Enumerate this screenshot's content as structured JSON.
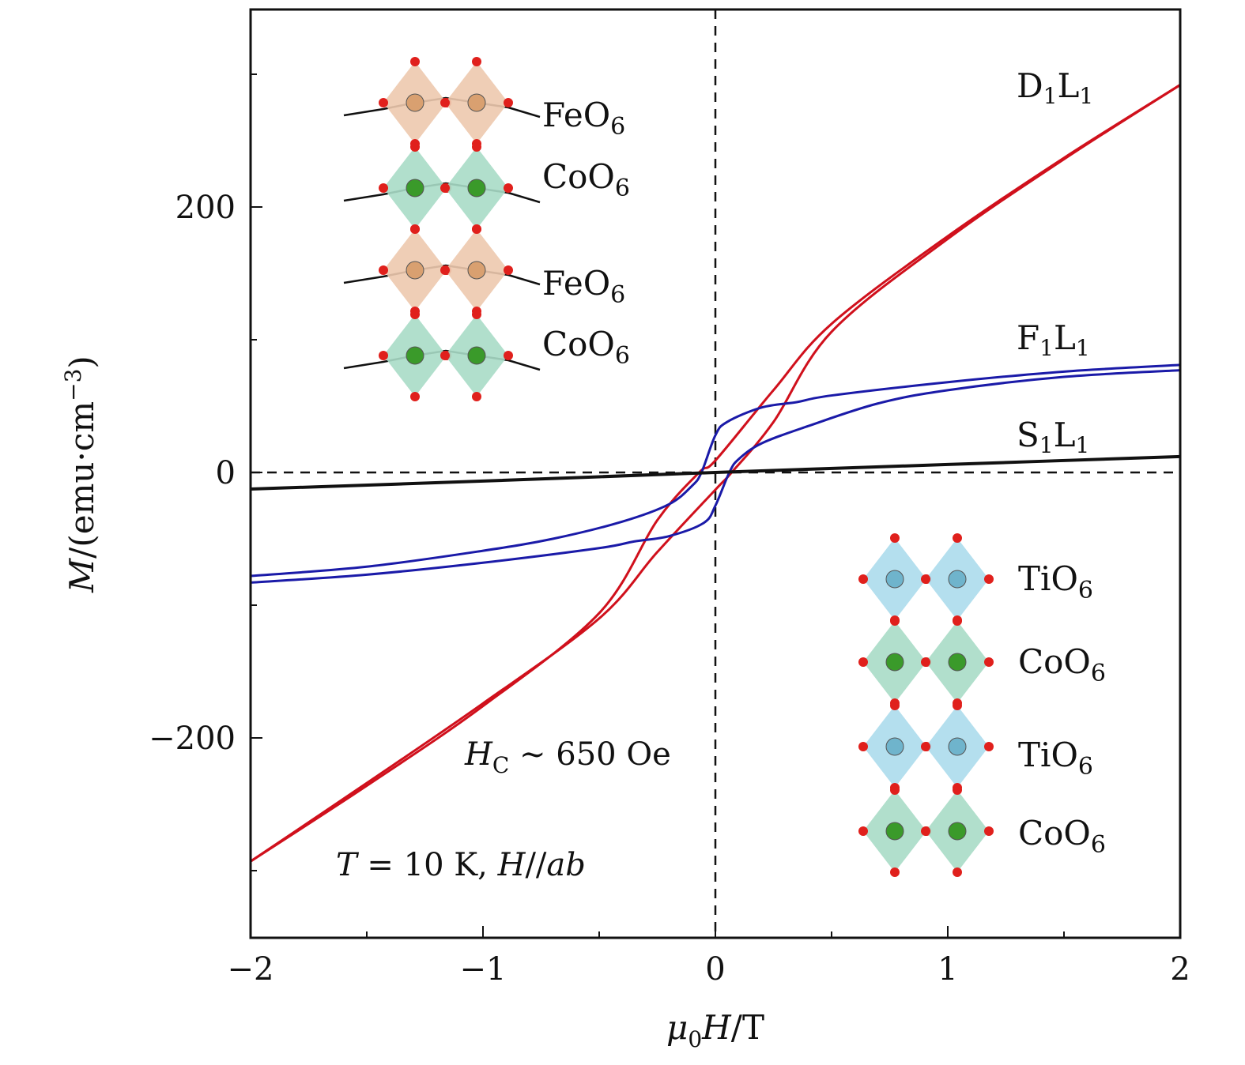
{
  "chart_data": {
    "type": "line",
    "xlabel": {
      "mu": "μ",
      "sub": "0",
      "rest": "H",
      "unit": "/T"
    },
    "ylabel": {
      "var": "M",
      "unit": "/(emu·cm",
      "exp": "−3",
      "close": ")"
    },
    "xlim": [
      -2,
      2
    ],
    "ylim": [
      -350,
      350
    ],
    "x_ticks": [
      -2,
      -1,
      0,
      1,
      2
    ],
    "x_tick_labels": [
      "−2",
      "−1",
      "0",
      "1",
      "2"
    ],
    "x_minor_ticks": [
      -1.5,
      -0.5,
      0.5,
      1.5
    ],
    "y_ticks": [
      -200,
      0,
      200
    ],
    "y_tick_labels": [
      "−200",
      "0",
      "200"
    ],
    "y_minor_ticks": [
      -300,
      -100,
      100,
      300
    ],
    "grid": false,
    "reference_lines": {
      "x": 0,
      "y": 0,
      "style": "dashed"
    },
    "series": [
      {
        "name": {
          "a": "D",
          "as": "1",
          "b": "L",
          "bs": "1"
        },
        "color": "#d0101c",
        "branches": [
          {
            "x": [
              -2,
              -1.5,
              -1,
              -0.5,
              -0.25,
              0,
              0.07,
              0.25,
              0.5,
              1,
              1.5,
              2
            ],
            "y": [
              -293,
              -234,
              -174,
              -110,
              -60,
              -13,
              0,
              38,
              106,
              176,
              236,
              292
            ]
          },
          {
            "x": [
              2,
              1.5,
              1,
              0.5,
              0.25,
              0,
              -0.07,
              -0.25,
              -0.5,
              -1,
              -1.5,
              -2
            ],
            "y": [
              292,
              237,
              178,
              112,
              62,
              9,
              0,
              -36,
              -106,
              -176,
              -236,
              -293
            ]
          }
        ]
      },
      {
        "name": {
          "a": "F",
          "as": "1",
          "b": "L",
          "bs": "1"
        },
        "color": "#1a1aa8",
        "branches": [
          {
            "x": [
              2,
              1.5,
              1,
              0.5,
              0.35,
              0.2,
              0.05,
              0,
              -0.06,
              -0.1,
              -0.2,
              -0.4,
              -0.7,
              -1,
              -1.5,
              -2
            ],
            "y": [
              81,
              76,
              68,
              58,
              53,
              49,
              38,
              28,
              0,
              -10,
              -24,
              -37,
              -50,
              -59,
              -71,
              -78
            ]
          },
          {
            "x": [
              -2,
              -1.5,
              -1,
              -0.5,
              -0.35,
              -0.2,
              -0.05,
              0,
              0.06,
              0.1,
              0.2,
              0.4,
              0.7,
              1,
              1.5,
              2
            ],
            "y": [
              -83,
              -77,
              -68,
              -57,
              -52,
              -48,
              -38,
              -25,
              0,
              10,
              22,
              35,
              52,
              62,
              72,
              77
            ]
          }
        ]
      },
      {
        "name": {
          "a": "S",
          "as": "1",
          "b": "L",
          "bs": "1"
        },
        "color": "#111111",
        "branches": [
          {
            "x": [
              -2,
              -1,
              0,
              1,
              2
            ],
            "y": [
              -12.5,
              -6.5,
              0,
              6,
              12
            ]
          }
        ]
      }
    ],
    "annotations": {
      "coercive": {
        "var": "H",
        "sub": "C",
        "text": " ∼ 650 Oe"
      },
      "conditions": {
        "t": "T",
        "t_val": " = 10 K, ",
        "h": "H",
        "slash": "//",
        "ab": "ab"
      }
    },
    "insets": [
      {
        "layers": [
          {
            "base": "FeO",
            "sub": "6",
            "fill": "#edc9ae",
            "atom": "#d9a070"
          },
          {
            "base": "CoO",
            "sub": "6",
            "fill": "#a9dcc6",
            "atom": "#3a9a2a"
          },
          {
            "base": "FeO",
            "sub": "6",
            "fill": "#edc9ae",
            "atom": "#d9a070"
          },
          {
            "base": "CoO",
            "sub": "6",
            "fill": "#a9dcc6",
            "atom": "#3a9a2a"
          }
        ]
      },
      {
        "layers": [
          {
            "base": "TiO",
            "sub": "6",
            "fill": "#acdcec",
            "atom": "#6fb4cc"
          },
          {
            "base": "CoO",
            "sub": "6",
            "fill": "#a9dcc6",
            "atom": "#3a9a2a"
          },
          {
            "base": "TiO",
            "sub": "6",
            "fill": "#acdcec",
            "atom": "#6fb4cc"
          },
          {
            "base": "CoO",
            "sub": "6",
            "fill": "#a9dcc6",
            "atom": "#3a9a2a"
          }
        ]
      }
    ],
    "oxygen_color": "#e0201c"
  }
}
